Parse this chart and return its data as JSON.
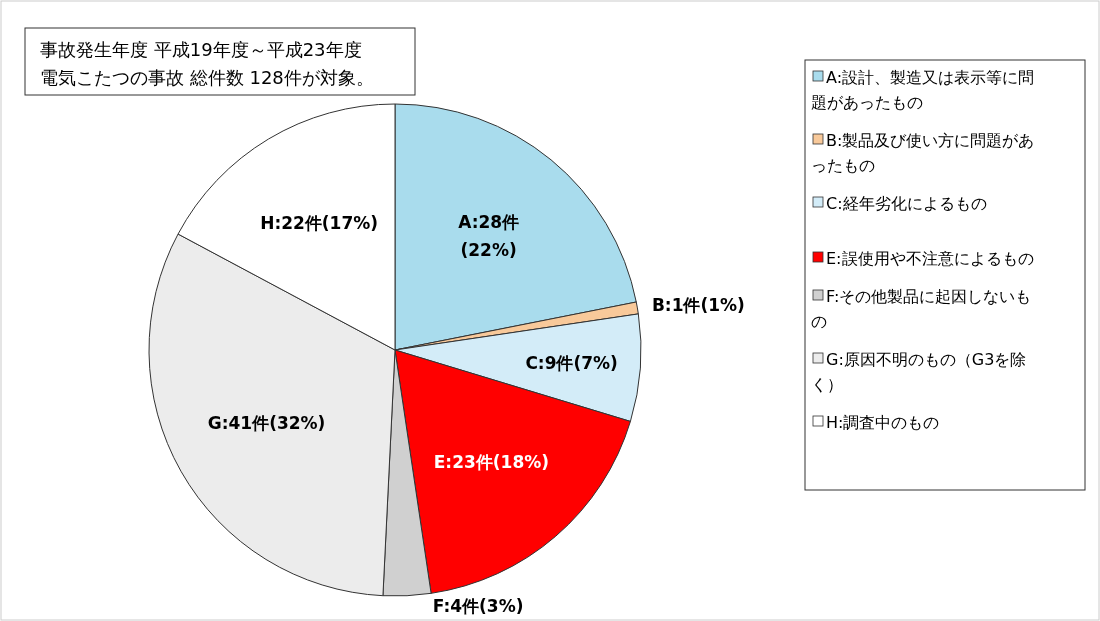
{
  "chart_data": {
    "type": "pie",
    "title": "事故発生年度 平成19年度～平成23年度",
    "subtitle": "電気こたつの事故 総件数 128件が対象。",
    "categories": [
      "A:設計、製造又は表示等に問題があったもの",
      "B:製品及び使い方に問題があったもの",
      "C:経年劣化によるもの",
      "E:誤使用や不注意によるもの",
      "F:その他製品に起因しないもの",
      "G:原因不明のもの（G3を除く）",
      "H:調査中のもの"
    ],
    "values": [
      28,
      1,
      9,
      23,
      4,
      41,
      22
    ],
    "value_labels": [
      "A:28件(22%)",
      "B:1件(1%)",
      "C:9件(7%)",
      "E:23件(18%)",
      "F:4件(3%)",
      "G:41件(32%)",
      "H:22件(17%)"
    ],
    "colors": [
      "#a9dced",
      "#f8c99a",
      "#d3ecf8",
      "#ff0000",
      "#d0d0d0",
      "#ececec",
      "#ffffff"
    ],
    "legend": "right"
  }
}
